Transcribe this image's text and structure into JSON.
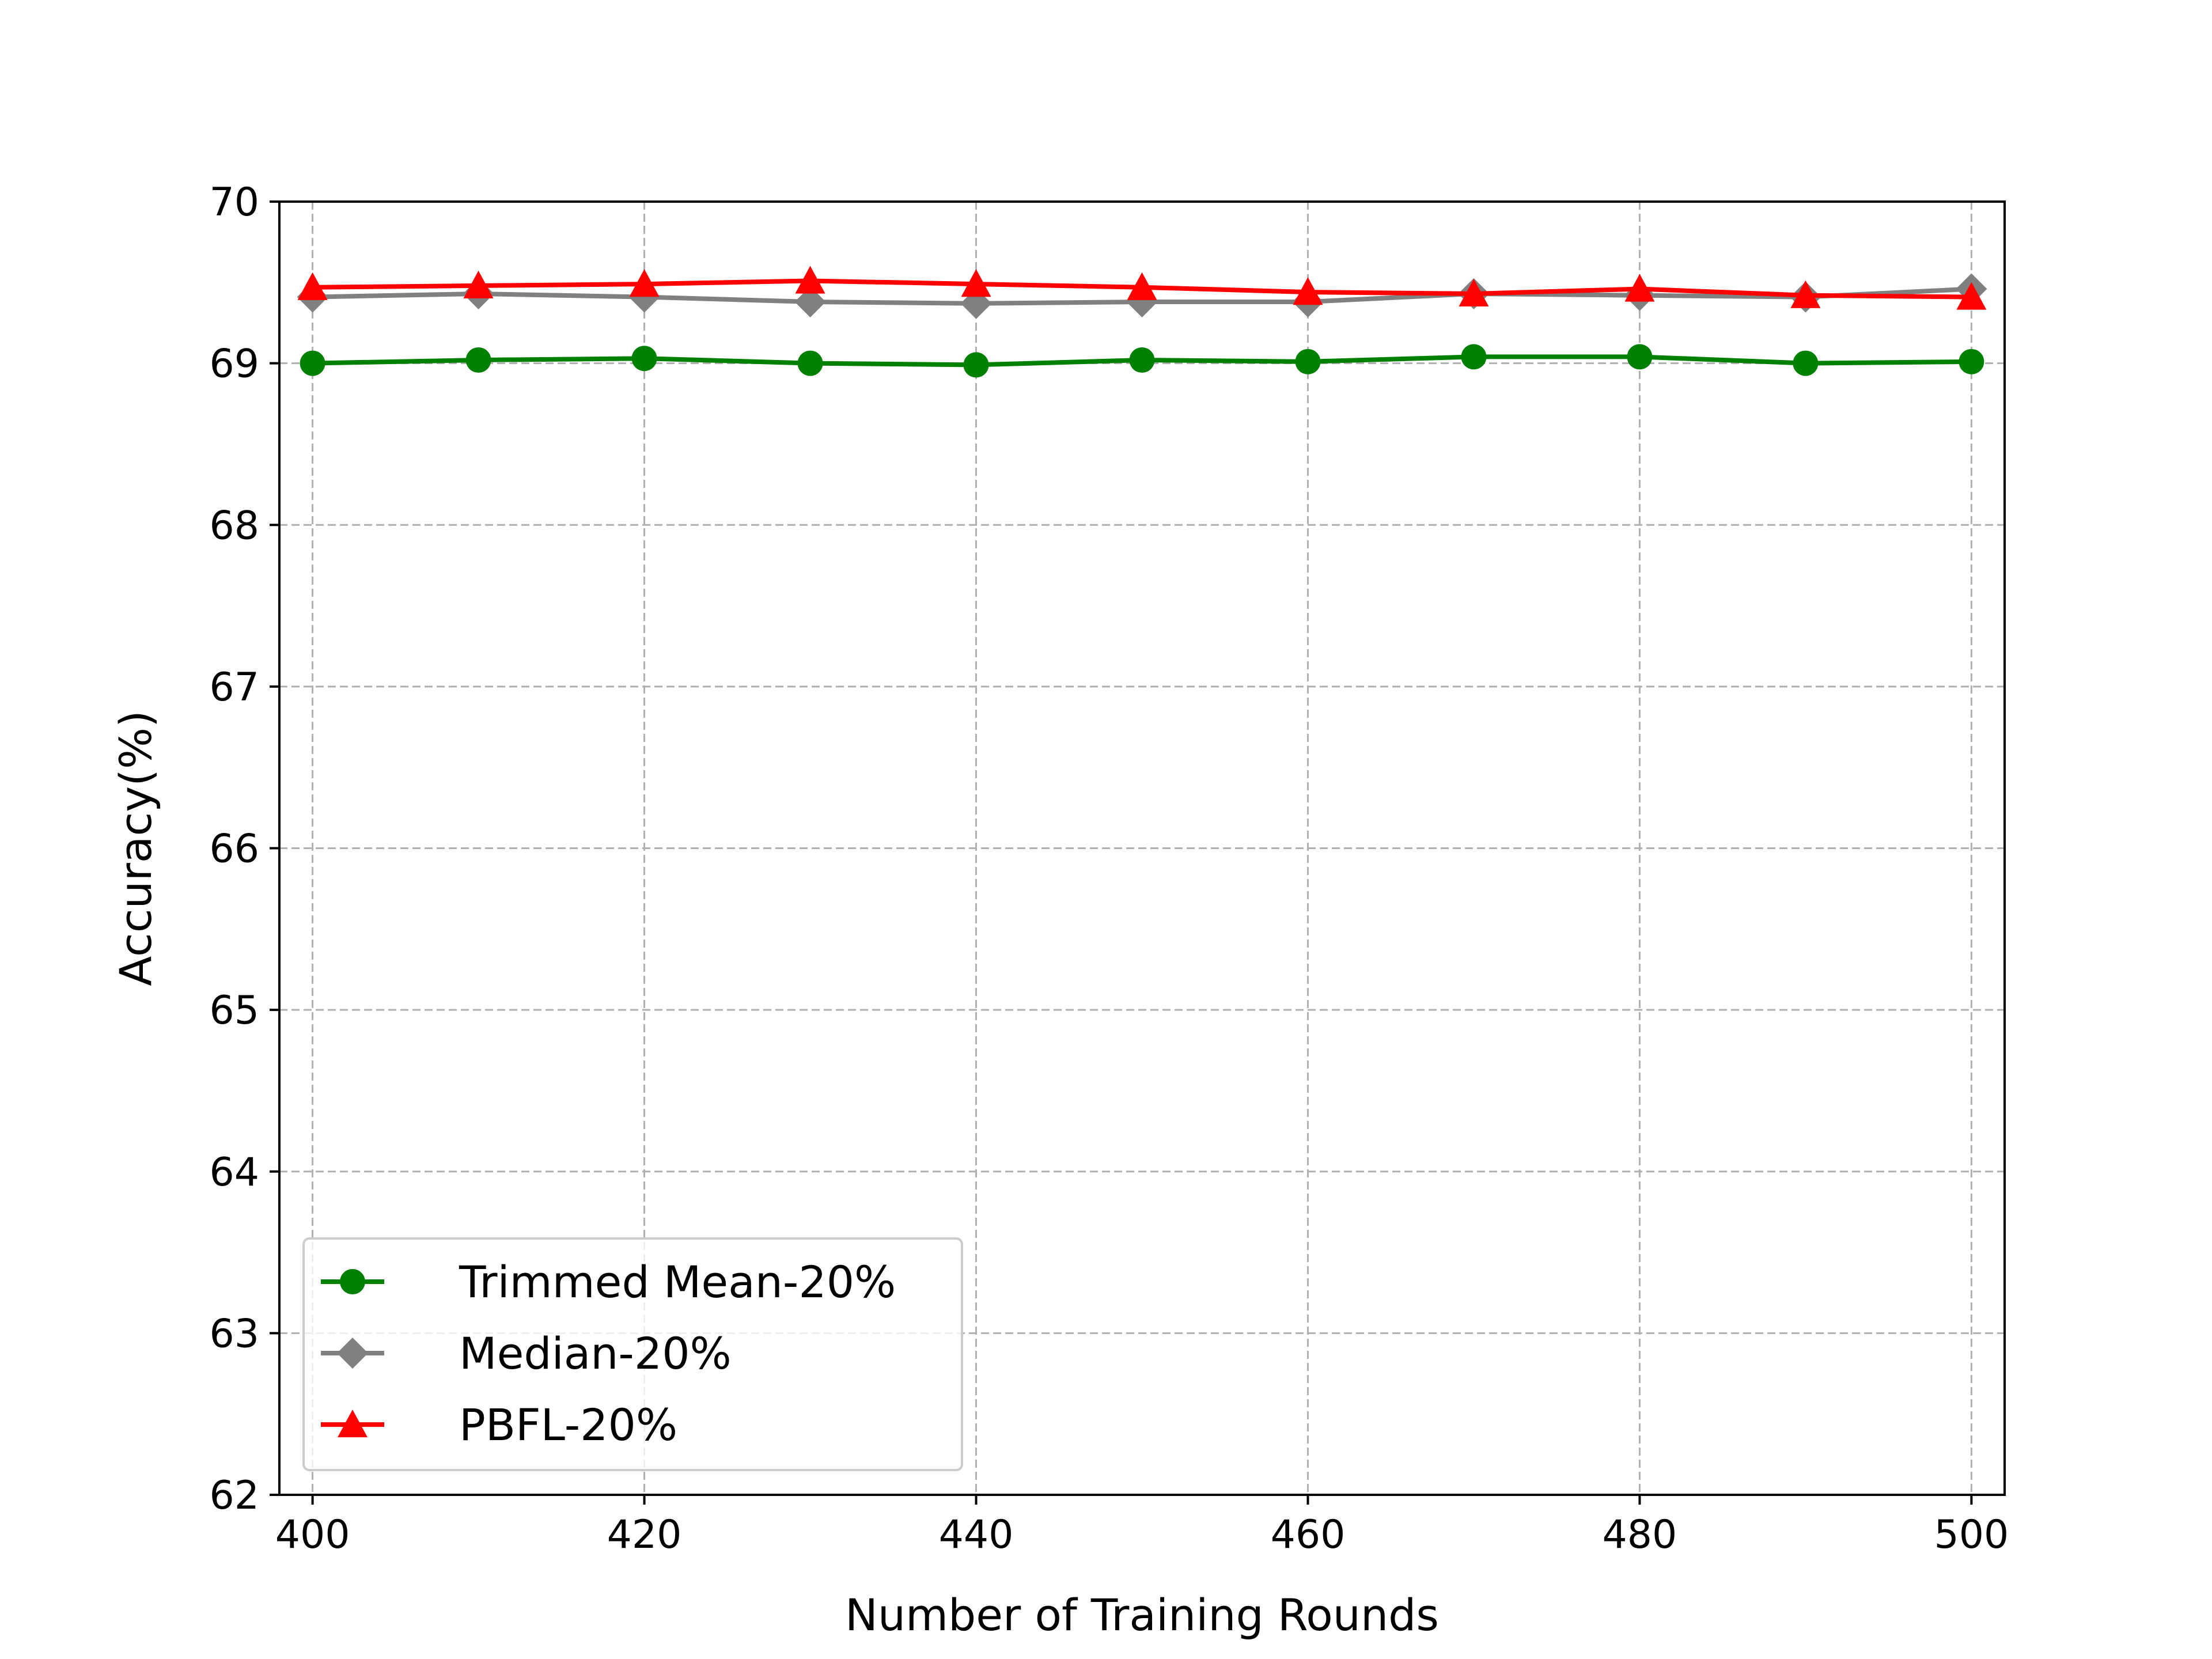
{
  "chart_data": {
    "type": "line",
    "title": "",
    "xlabel": "Number of Training Rounds",
    "ylabel": "Accuracy(%)",
    "x": [
      400,
      410,
      420,
      430,
      440,
      450,
      460,
      470,
      480,
      490,
      500
    ],
    "xlim": [
      398,
      502
    ],
    "ylim": [
      62,
      70
    ],
    "xticks": [
      "400",
      "420",
      "440",
      "460",
      "480",
      "500"
    ],
    "yticks": [
      "62",
      "63",
      "64",
      "65",
      "66",
      "67",
      "68",
      "69",
      "70"
    ],
    "grid": true,
    "grid_style": "dashed",
    "legend_position": "lower-left",
    "series": [
      {
        "name": "Trimmed Mean-20%",
        "color": "#008000",
        "marker": "circle",
        "values": [
          69.0,
          69.02,
          69.03,
          69.0,
          68.99,
          69.02,
          69.01,
          69.04,
          69.04,
          69.0,
          69.01
        ]
      },
      {
        "name": "Median-20%",
        "color": "#808080",
        "marker": "diamond",
        "values": [
          69.41,
          69.43,
          69.41,
          69.38,
          69.37,
          69.38,
          69.38,
          69.43,
          69.42,
          69.41,
          69.46
        ]
      },
      {
        "name": "PBFL-20%",
        "color": "#ff0000",
        "marker": "triangle",
        "values": [
          69.47,
          69.48,
          69.49,
          69.51,
          69.49,
          69.47,
          69.44,
          69.43,
          69.46,
          69.42,
          69.41
        ]
      }
    ]
  }
}
